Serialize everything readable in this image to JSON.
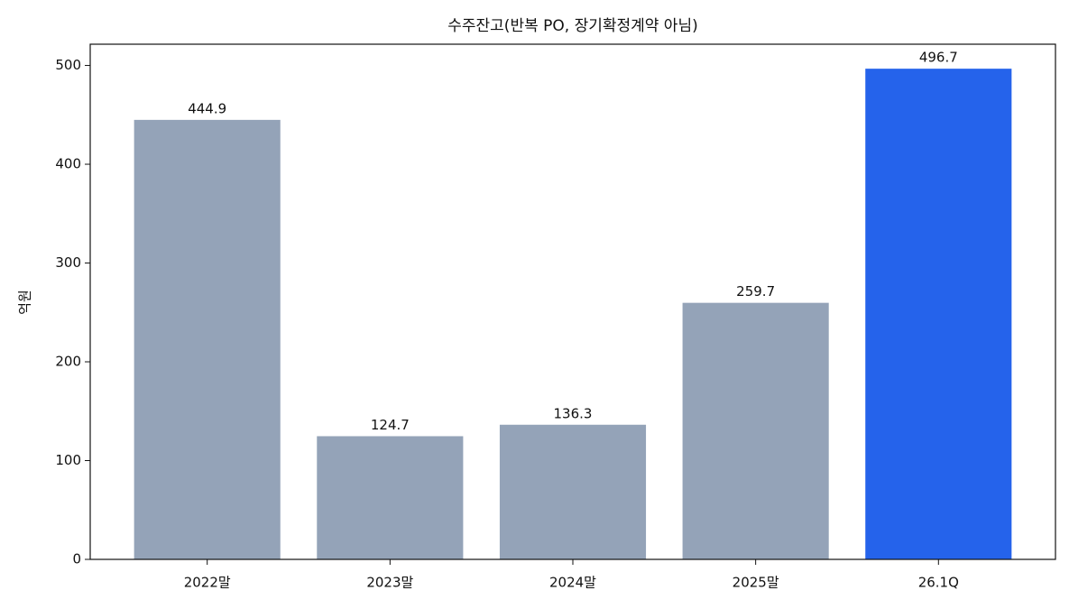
{
  "chart_data": {
    "type": "bar",
    "title": "수주잔고(반복 PO, 장기확정계약 아님)",
    "y_label": "억원",
    "categories": [
      "2022말",
      "2023말",
      "2024말",
      "2025말",
      "26.1Q"
    ],
    "values": [
      444.9,
      124.7,
      136.3,
      259.7,
      496.7
    ],
    "colors": [
      "#94a3b8",
      "#94a3b8",
      "#94a3b8",
      "#94a3b8",
      "#2563eb"
    ],
    "ylim": [
      0,
      521.5
    ],
    "yticks": [
      0,
      100,
      200,
      300,
      400,
      500
    ],
    "grid": false
  }
}
